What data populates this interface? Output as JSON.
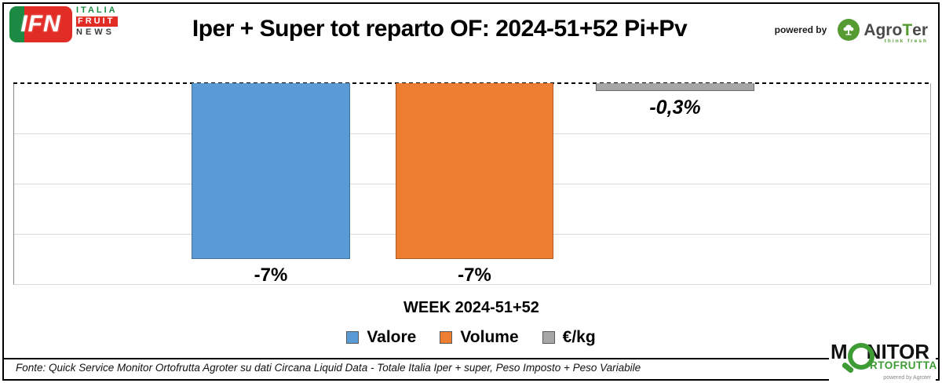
{
  "header": {
    "ifn_logo": {
      "abbr": "IFN",
      "line1": "ITALIA",
      "line2": "FRUIT",
      "line3": "NEWS"
    },
    "title": "Iper + Super tot reparto OF: 2024-51+52 Pi+Pv",
    "powered_by": "powered by",
    "agroter": {
      "name_prefix": "Agro",
      "name_t": "T",
      "name_suffix": "er",
      "tagline": "think fresh"
    }
  },
  "chart_data": {
    "type": "bar",
    "categories": [
      "Valore",
      "Volume",
      "€/kg"
    ],
    "values": [
      -7,
      -7,
      -0.3
    ],
    "labels": [
      "-7%",
      "-7%",
      "-0,3%"
    ],
    "colors": [
      "#5B9BD5",
      "#ED7D31",
      "#A6A6A6"
    ],
    "title": "Iper + Super tot reparto OF: 2024-51+52 Pi+Pv",
    "xlabel": "WEEK 2024-51+52",
    "ylabel": "",
    "ylim": [
      -8,
      0
    ],
    "grid": "horizontal gridlines every 2%",
    "zero_line": "dashed black line at 0 (top of plot)",
    "legend_position": "bottom"
  },
  "legend": {
    "items": [
      {
        "label": "Valore",
        "color": "#5B9BD5"
      },
      {
        "label": "Volume",
        "color": "#ED7D31"
      },
      {
        "label": "€/kg",
        "color": "#A6A6A6"
      }
    ]
  },
  "footer": {
    "source": "Fonte: Quick Service Monitor Ortofrutta Agroter su dati Circana Liquid Data - Totale Italia Iper + super, Peso Imposto + Peso Variabile"
  },
  "monitor_logo": {
    "line1_prefix": "M",
    "line1_suffix": "NITOR",
    "line2": "RTOFRUTTA",
    "powered": "powered by Agroter"
  }
}
